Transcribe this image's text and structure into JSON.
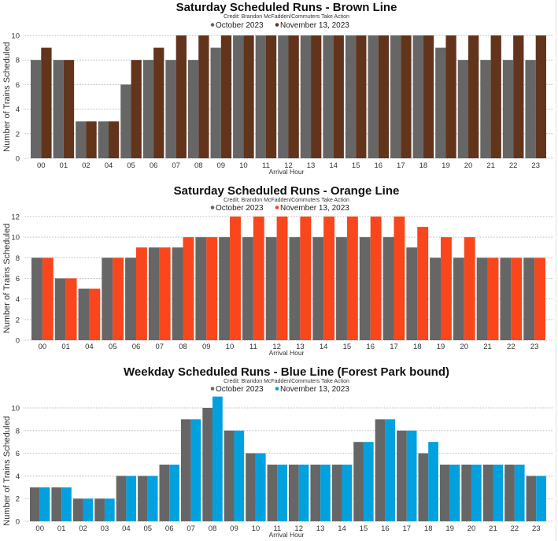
{
  "chart_data": [
    {
      "type": "bar",
      "title": "Saturday Scheduled Runs - Brown Line",
      "subtitle": "Credit: Brandon McFadden/Commuters Take Action",
      "xlabel": "Arrival Hour",
      "ylabel": "Number of Trains Scheduled",
      "ylim": [
        0,
        10
      ],
      "yticks": [
        0,
        2,
        4,
        6,
        8,
        10
      ],
      "grid": true,
      "legend_position": "top-center",
      "categories": [
        "00",
        "01",
        "02",
        "04",
        "05",
        "06",
        "07",
        "08",
        "09",
        "10",
        "11",
        "12",
        "13",
        "14",
        "15",
        "16",
        "17",
        "18",
        "19",
        "20",
        "21",
        "22",
        "23"
      ],
      "series": [
        {
          "name": "October 2023",
          "color": "#666666",
          "values": [
            8,
            8,
            3,
            3,
            6,
            8,
            8,
            8,
            9,
            10,
            10,
            10,
            10,
            10,
            10,
            10,
            10,
            10,
            9,
            8,
            8,
            8,
            8
          ]
        },
        {
          "name": "November 13, 2023",
          "color": "#62341c",
          "values": [
            9,
            8,
            3,
            3,
            8,
            9,
            10,
            10,
            10,
            10,
            10,
            10,
            10,
            10,
            10,
            10,
            10,
            10,
            10,
            10,
            10,
            10,
            10
          ]
        }
      ]
    },
    {
      "type": "bar",
      "title": "Saturday Scheduled Runs - Orange Line",
      "subtitle": "Credit: Brandon McFadden/Commuters Take Action",
      "xlabel": "Arrival Hour",
      "ylabel": "Number of Trains Scheduled",
      "ylim": [
        0,
        12
      ],
      "yticks": [
        0,
        2,
        4,
        6,
        8,
        10,
        12
      ],
      "grid": true,
      "legend_position": "top-center",
      "categories": [
        "00",
        "01",
        "04",
        "05",
        "06",
        "07",
        "08",
        "09",
        "10",
        "11",
        "12",
        "13",
        "14",
        "15",
        "16",
        "17",
        "18",
        "19",
        "20",
        "21",
        "22",
        "23"
      ],
      "series": [
        {
          "name": "October 2023",
          "color": "#666666",
          "values": [
            8,
            6,
            5,
            8,
            8,
            9,
            9,
            10,
            10,
            10,
            10,
            10,
            10,
            10,
            10,
            10,
            9,
            8,
            8,
            8,
            8,
            8
          ]
        },
        {
          "name": "November 13, 2023",
          "color": "#f9461c",
          "values": [
            8,
            6,
            5,
            8,
            9,
            9,
            10,
            10,
            12,
            12,
            12,
            12,
            12,
            12,
            12,
            12,
            11,
            10,
            10,
            8,
            8,
            8
          ]
        }
      ]
    },
    {
      "type": "bar",
      "title": "Weekday Scheduled Runs - Blue Line (Forest Park bound)",
      "subtitle": "Credit: Brandon McFadden/Commuters Take Action",
      "xlabel": "Arrival Hour",
      "ylabel": "Number of Trains Scheduled",
      "ylim": [
        0,
        11
      ],
      "yticks": [
        0,
        2,
        4,
        6,
        8,
        10
      ],
      "grid": true,
      "legend_position": "top-center",
      "categories": [
        "00",
        "01",
        "02",
        "03",
        "04",
        "05",
        "06",
        "07",
        "08",
        "09",
        "10",
        "11",
        "12",
        "13",
        "14",
        "15",
        "16",
        "17",
        "18",
        "19",
        "20",
        "21",
        "22",
        "23"
      ],
      "series": [
        {
          "name": "October 2023",
          "color": "#666666",
          "values": [
            3,
            3,
            2,
            2,
            4,
            4,
            5,
            9,
            10,
            8,
            6,
            5,
            5,
            5,
            5,
            7,
            9,
            8,
            6,
            5,
            5,
            5,
            5,
            4
          ]
        },
        {
          "name": "November 13, 2023",
          "color": "#00a1de",
          "values": [
            3,
            3,
            2,
            2,
            4,
            4,
            5,
            9,
            11,
            8,
            6,
            5,
            5,
            5,
            5,
            7,
            9,
            8,
            7,
            5,
            5,
            5,
            5,
            4
          ]
        }
      ]
    }
  ]
}
